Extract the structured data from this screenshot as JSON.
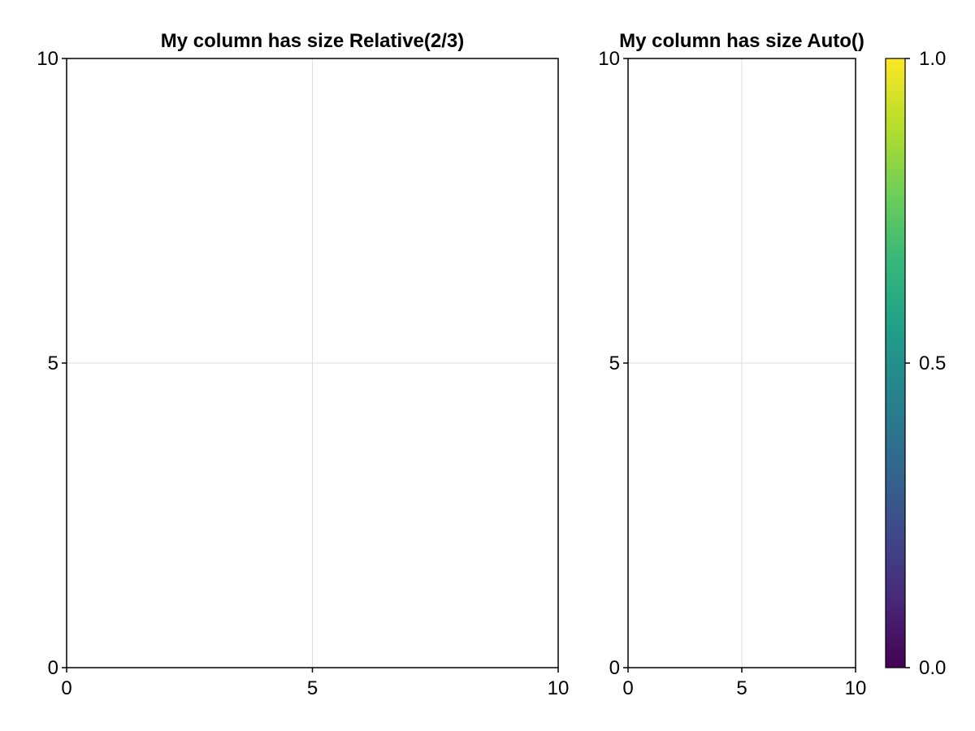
{
  "chart_data": [
    {
      "type": "scatter",
      "title": "My column has size Relative(2/3)",
      "xlim": [
        0,
        10
      ],
      "ylim": [
        0,
        10
      ],
      "xticks": [
        0,
        5,
        10
      ],
      "yticks": [
        0,
        5,
        10
      ],
      "grid": true,
      "series": []
    },
    {
      "type": "scatter",
      "title": "My column has size Auto()",
      "xlim": [
        0,
        10
      ],
      "ylim": [
        0,
        10
      ],
      "xticks": [
        0,
        5,
        10
      ],
      "yticks": [
        0,
        5,
        10
      ],
      "grid": true,
      "series": []
    },
    {
      "type": "colorbar",
      "colormap": "viridis",
      "colors": [
        "#440154",
        "#482878",
        "#3e4a89",
        "#31688e",
        "#26828e",
        "#1f9e89",
        "#35b779",
        "#6ece58",
        "#b5de2b",
        "#fde725"
      ],
      "limits": [
        0,
        1
      ],
      "ticks": [
        "0.0",
        "0.5",
        "1.0"
      ]
    }
  ]
}
